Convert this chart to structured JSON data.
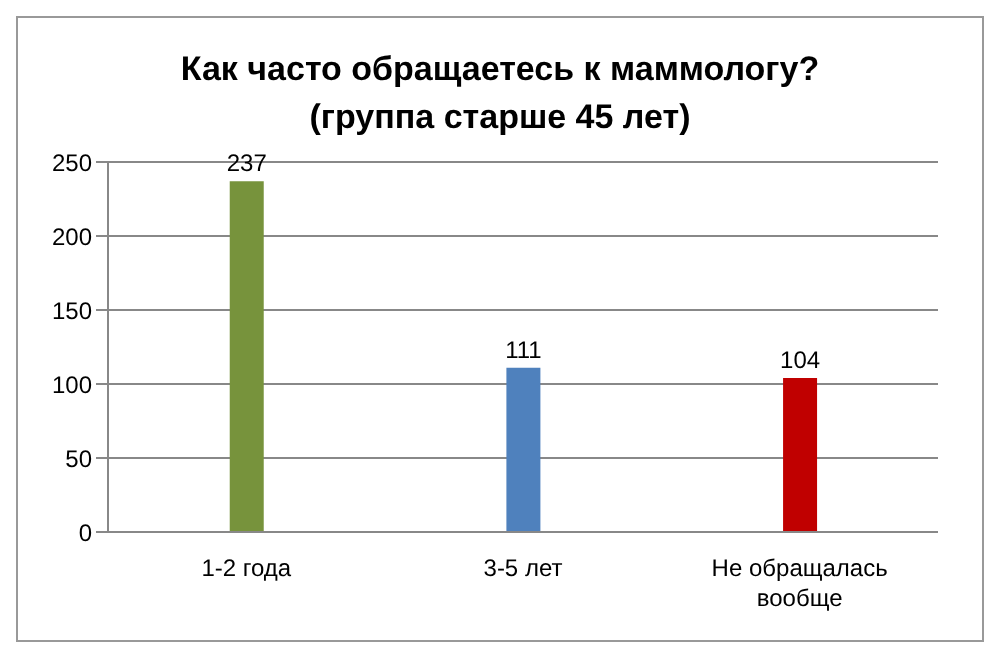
{
  "chart_data": {
    "type": "bar",
    "title": "Как часто обращаетесь к маммологу?\n(группа старше 45 лет)",
    "categories": [
      "1-2 года",
      "3-5 лет",
      "Не обращалась вообще"
    ],
    "values": [
      237,
      111,
      104
    ],
    "colors": [
      "#77933c",
      "#4f81bd",
      "#c00000"
    ],
    "ylim": [
      0,
      250
    ],
    "yticks": [
      0,
      50,
      100,
      150,
      200,
      250
    ],
    "grid": "y",
    "data_labels": true
  }
}
